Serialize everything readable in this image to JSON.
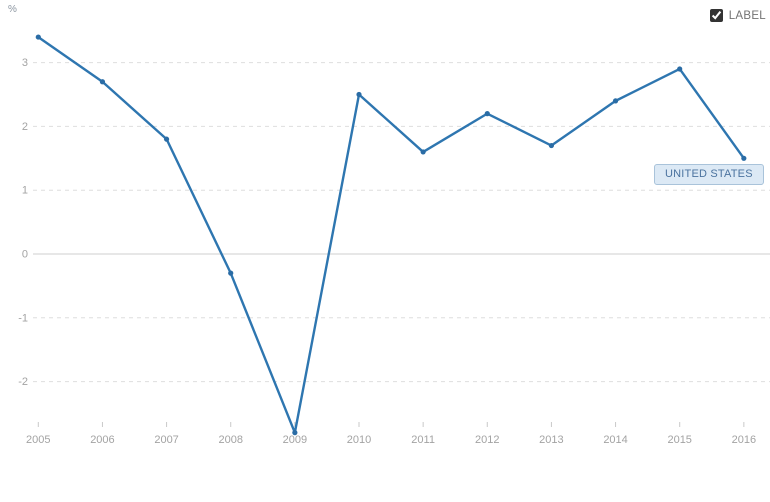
{
  "header": {
    "unit_label": "%",
    "label_toggle": {
      "label": "LABEL",
      "checked": true
    }
  },
  "series_badge": {
    "text": "UNITED STATES"
  },
  "chart_data": {
    "type": "line",
    "title": "",
    "xlabel": "",
    "ylabel": "%",
    "categories": [
      "2005",
      "2006",
      "2007",
      "2008",
      "2009",
      "2010",
      "2011",
      "2012",
      "2013",
      "2014",
      "2015",
      "2016"
    ],
    "series": [
      {
        "name": "UNITED STATES",
        "values": [
          3.4,
          2.7,
          1.8,
          -0.3,
          -2.8,
          2.5,
          1.6,
          2.2,
          1.7,
          2.4,
          2.9,
          1.5
        ]
      }
    ],
    "yticks": [
      3,
      2,
      1,
      0,
      -1,
      -2
    ],
    "ylim": [
      -3.0,
      3.6
    ],
    "grid": "horizontal dashed, solid line at zero",
    "legend_position": "none",
    "line_color": "#2e76b0",
    "point_color": "#2a6ca5",
    "gridline_color": "#dedede",
    "zero_line_color": "#cfcfcf",
    "tick_text_color": "#a3a3a3",
    "tick_mark_color": "#c9c9c9",
    "badge_bg_color": "#dce9f5",
    "badge_border_color": "#a9c3da",
    "badge_text_color": "#4b739f"
  }
}
